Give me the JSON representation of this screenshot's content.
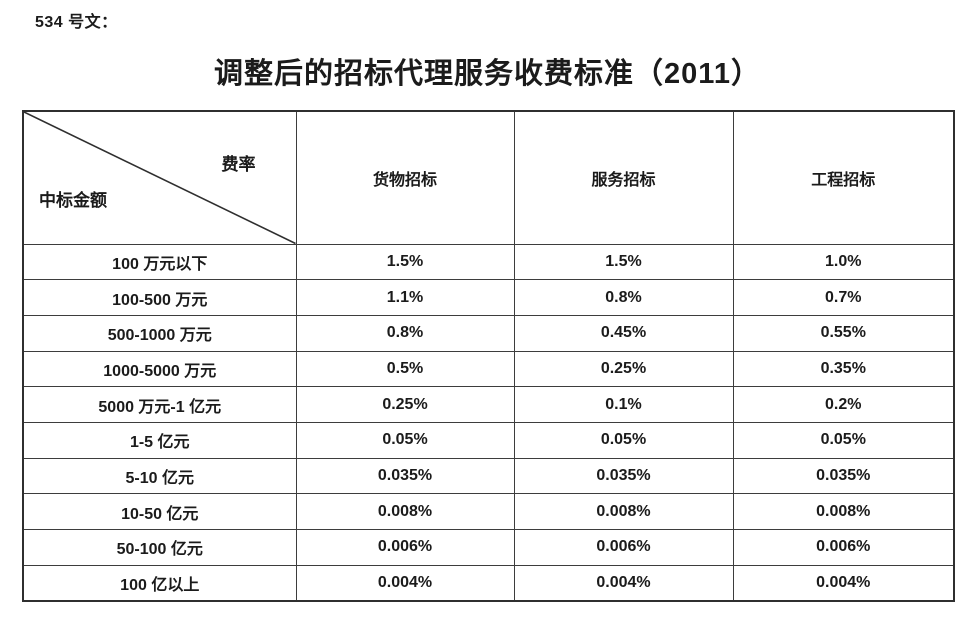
{
  "doc": {
    "ref_label": "534 号文：",
    "title": "调整后的招标代理服务收费标准（2011）"
  },
  "table": {
    "corner": {
      "top_right": "费率",
      "bottom_left": "中标金额"
    },
    "columns": [
      "货物招标",
      "服务招标",
      "工程招标"
    ],
    "rows": [
      {
        "amount": "100 万元以下",
        "goods": "1.5%",
        "services": "1.5%",
        "engineering": "1.0%"
      },
      {
        "amount": "100-500 万元",
        "goods": "1.1%",
        "services": "0.8%",
        "engineering": "0.7%"
      },
      {
        "amount": "500-1000 万元",
        "goods": "0.8%",
        "services": "0.45%",
        "engineering": "0.55%"
      },
      {
        "amount": "1000-5000 万元",
        "goods": "0.5%",
        "services": "0.25%",
        "engineering": "0.35%"
      },
      {
        "amount": "5000 万元-1 亿元",
        "goods": "0.25%",
        "services": "0.1%",
        "engineering": "0.2%"
      },
      {
        "amount": "1-5 亿元",
        "goods": "0.05%",
        "services": "0.05%",
        "engineering": "0.05%"
      },
      {
        "amount": "5-10 亿元",
        "goods": "0.035%",
        "services": "0.035%",
        "engineering": "0.035%"
      },
      {
        "amount": "10-50 亿元",
        "goods": "0.008%",
        "services": "0.008%",
        "engineering": "0.008%"
      },
      {
        "amount": "50-100 亿元",
        "goods": "0.006%",
        "services": "0.006%",
        "engineering": "0.006%"
      },
      {
        "amount": "100 亿以上",
        "goods": "0.004%",
        "services": "0.004%",
        "engineering": "0.004%"
      }
    ]
  },
  "colors": {
    "text": "#1b1b1b",
    "border_outer": "#2f2f2f",
    "border_inner": "#3d3d3d",
    "background": "#ffffff"
  }
}
